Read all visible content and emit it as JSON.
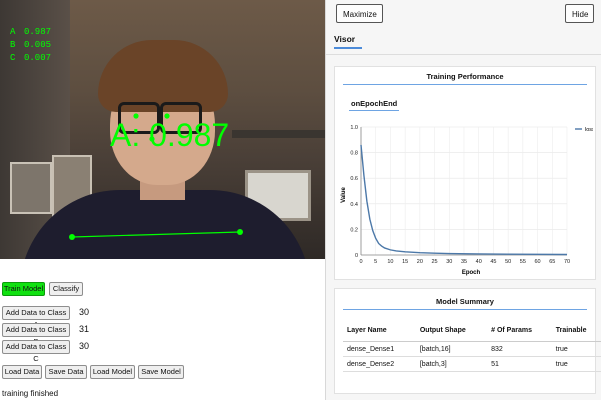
{
  "webcam": {
    "confidences": [
      {
        "label": "A",
        "value": "0.987"
      },
      {
        "label": "B",
        "value": "0.005"
      },
      {
        "label": "C",
        "value": "0.007"
      }
    ],
    "prediction_label": "A: 0.987",
    "overlay_color": "#00ff00"
  },
  "controls": {
    "train_label": "Train Model",
    "classify_label": "Classify",
    "add_a_label": "Add Data to Class A",
    "add_b_label": "Add Data to Class B",
    "add_c_label": "Add Data to Class C",
    "count_a": "30",
    "count_b": "31",
    "count_c": "30",
    "load_data_label": "Load Data",
    "save_data_label": "Save Data",
    "load_model_label": "Load Model",
    "save_model_label": "Save Model",
    "status": "training finished"
  },
  "visor": {
    "maximize_label": "Maximize",
    "hide_label": "Hide",
    "tab_label": "Visor",
    "performance": {
      "title": "Training Performance",
      "subtab": "onEpochEnd"
    },
    "summary": {
      "title": "Model Summary",
      "headers": [
        "Layer Name",
        "Output Shape",
        "# Of Params",
        "Trainable"
      ],
      "rows": [
        [
          "dense_Dense1",
          "[batch,16]",
          "832",
          "true"
        ],
        [
          "dense_Dense2",
          "[batch,3]",
          "51",
          "true"
        ]
      ]
    }
  },
  "chart_data": {
    "type": "line",
    "xlabel": "Epoch",
    "ylabel": "Value",
    "xlim": [
      0,
      70
    ],
    "ylim": [
      0,
      1.0
    ],
    "xticks": [
      0,
      5,
      10,
      15,
      20,
      25,
      30,
      35,
      40,
      45,
      50,
      55,
      60,
      65,
      70
    ],
    "yticks": [
      0,
      0.2,
      0.4,
      0.6,
      0.8,
      1.0
    ],
    "legend": "top-right",
    "line_color": "#4c78a8",
    "series": [
      {
        "name": "loss",
        "x": [
          0,
          1,
          2,
          3,
          4,
          5,
          6,
          7,
          8,
          10,
          12,
          15,
          20,
          25,
          30,
          40,
          50,
          60,
          70
        ],
        "y": [
          0.86,
          0.62,
          0.42,
          0.28,
          0.19,
          0.13,
          0.09,
          0.07,
          0.055,
          0.04,
          0.032,
          0.025,
          0.018,
          0.014,
          0.011,
          0.008,
          0.006,
          0.005,
          0.004
        ]
      }
    ]
  }
}
